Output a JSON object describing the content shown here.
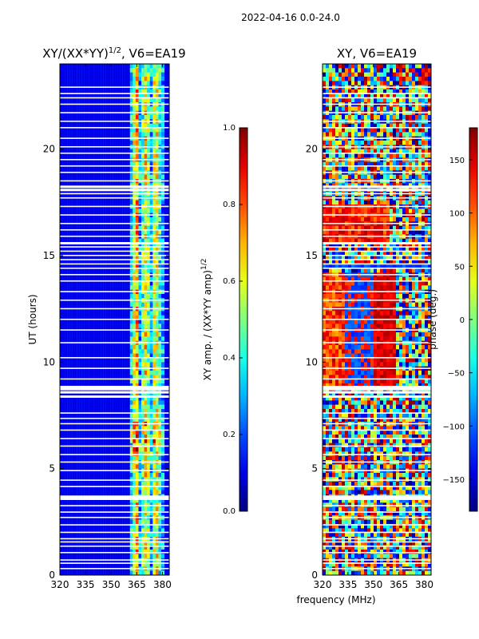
{
  "figure_title": "2022-04-16 0.0-24.0",
  "chart_data": [
    {
      "type": "heatmap",
      "title": "XY/(XX*YY)^1/2, V6=EA19",
      "title_main": "XY/(XX*YY)",
      "title_sup": "1/2",
      "title_tail": ", V6=EA19",
      "xlabel": "",
      "ylabel": "UT (hours)",
      "xlim": [
        320,
        384
      ],
      "ylim": [
        0,
        24
      ],
      "xticks": [
        320,
        335,
        350,
        365,
        380
      ],
      "yticks": [
        0,
        5,
        10,
        15,
        20
      ],
      "colorbar": {
        "label": "XY amp. / (XX*YY amp)^1/2",
        "label_main": "XY amp. / (XX*YY amp)",
        "label_sup": "1/2",
        "range": [
          0.0,
          1.0
        ],
        "ticks": [
          "0.0",
          "0.2",
          "0.4",
          "0.6",
          "0.8",
          "1.0"
        ]
      },
      "colormap": "jet",
      "description_values": {
        "low_band_mhz": [
          320,
          360
        ],
        "low_band_level": 0.05,
        "high_band_mhz": [
          361,
          381
        ],
        "high_band_level_range": [
          0.3,
          0.8
        ]
      }
    },
    {
      "type": "heatmap",
      "title": "XY, V6=EA19",
      "xlabel": "frequency (MHz)",
      "ylabel": "",
      "xlim": [
        320,
        384
      ],
      "ylim": [
        0,
        24
      ],
      "xticks": [
        320,
        335,
        350,
        365,
        380
      ],
      "yticks": [
        0,
        5,
        10,
        15,
        20
      ],
      "colorbar": {
        "label": "phase (deg.)",
        "range": [
          -180,
          180
        ],
        "ticks": [
          "−150",
          "−100",
          "−50",
          "0",
          "50",
          "100",
          "150"
        ],
        "tick_values": [
          -150,
          -100,
          -50,
          0,
          50,
          100,
          150
        ]
      },
      "colormap": "jet"
    }
  ],
  "flagged_hours": [
    0.3,
    0.55,
    0.7,
    1.05,
    1.35,
    1.55,
    1.7,
    2.0,
    2.35,
    2.7,
    2.95,
    3.25,
    3.6,
    3.7,
    4.15,
    4.45,
    4.9,
    5.3,
    5.65,
    6.05,
    6.4,
    6.8,
    7.1,
    7.35,
    7.6,
    8.4,
    8.6,
    8.75,
    8.85,
    9.2,
    9.7,
    10.2,
    10.9,
    11.5,
    12.0,
    12.5,
    12.9,
    13.3,
    13.8,
    14.1,
    14.4,
    14.6,
    14.8,
    15.0,
    15.2,
    15.4,
    15.6,
    15.9,
    16.2,
    16.5,
    16.9,
    17.3,
    17.7,
    17.9,
    18.1,
    18.25,
    18.5,
    18.9,
    19.2,
    19.5,
    19.8,
    20.1,
    20.5,
    21.0,
    21.3,
    21.7,
    22.1,
    22.4,
    22.6,
    22.9
  ]
}
